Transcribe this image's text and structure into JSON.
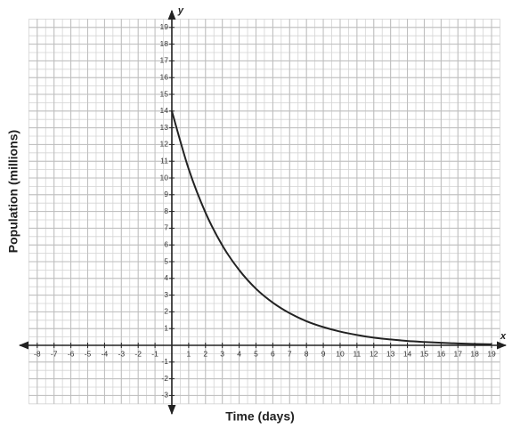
{
  "chart_data": {
    "type": "line",
    "xlabel": "Time (days)",
    "ylabel": "Population (millions)",
    "x_axis_name": "x",
    "y_axis_name": "y",
    "x": [
      0,
      1,
      2,
      3,
      4,
      5,
      6,
      7,
      8,
      9,
      10,
      11,
      12,
      13,
      14,
      15,
      16,
      17,
      18,
      19
    ],
    "series": [
      {
        "color": "#222222",
        "values": [
          14,
          10.54,
          7.93,
          5.97,
          4.5,
          3.38,
          2.55,
          1.92,
          1.44,
          1.09,
          0.82,
          0.62,
          0.46,
          0.35,
          0.26,
          0.2,
          0.15,
          0.11,
          0.08,
          0.06
        ]
      }
    ],
    "xlim": [
      -8.5,
      19.5
    ],
    "ylim": [
      -3.5,
      19.5
    ],
    "xticks": [
      -8,
      -7,
      -6,
      -5,
      -4,
      -3,
      -2,
      -1,
      1,
      2,
      3,
      4,
      5,
      6,
      7,
      8,
      9,
      10,
      11,
      12,
      13,
      14,
      15,
      16,
      17,
      18,
      19
    ],
    "yticks": [
      -3,
      -2,
      -1,
      1,
      2,
      3,
      4,
      5,
      6,
      7,
      8,
      9,
      10,
      11,
      12,
      13,
      14,
      15,
      16,
      17,
      18,
      19
    ],
    "grid": true
  }
}
